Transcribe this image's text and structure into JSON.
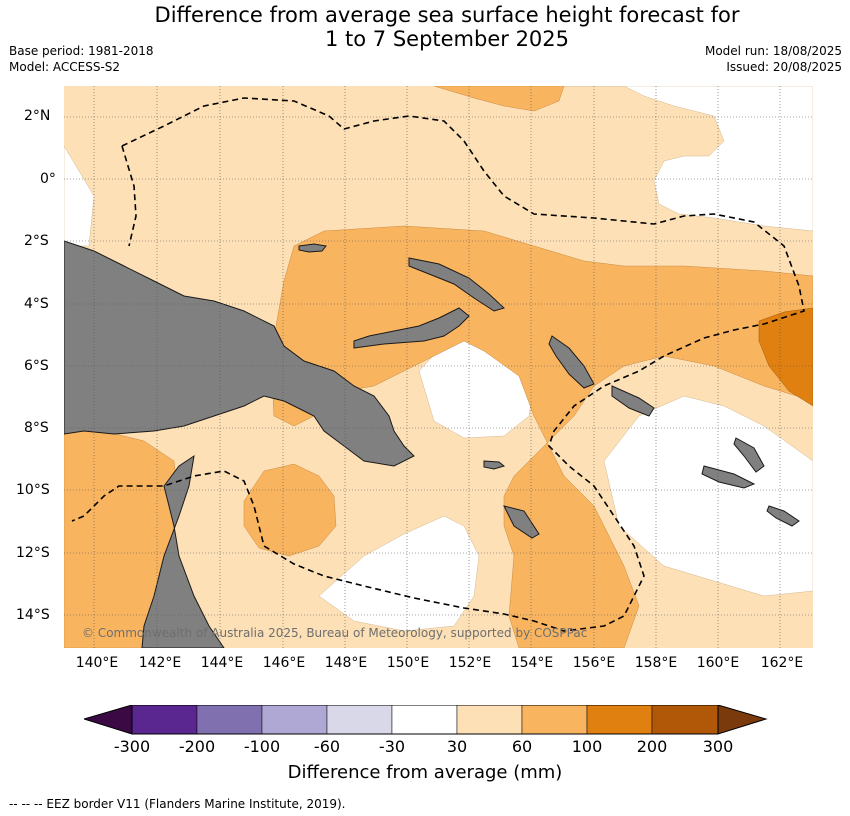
{
  "title_line1": "Difference from average sea surface height forecast for",
  "title_line2": "1 to 7 September 2025",
  "base_period": "Base period: 1981-2018",
  "model": "Model: ACCESS-S2",
  "model_run": "Model run: 18/08/2025",
  "issued": "Issued: 20/08/2025",
  "copyright": "© Commonwealth of Australia 2025, Bureau of Meteorology, supported by COSPPac",
  "lat_labels": [
    "2°N",
    "0°",
    "2°S",
    "4°S",
    "6°S",
    "8°S",
    "10°S",
    "12°S",
    "14°S"
  ],
  "lon_labels": [
    "140°E",
    "142°E",
    "144°E",
    "146°E",
    "148°E",
    "150°E",
    "152°E",
    "154°E",
    "156°E",
    "158°E",
    "160°E",
    "162°E"
  ],
  "colorbar": {
    "title": "Difference from average (mm)",
    "ticks": [
      "-300",
      "-200",
      "-100",
      "-60",
      "-30",
      "30",
      "60",
      "100",
      "200",
      "300"
    ],
    "colors": [
      "#3b0a45",
      "#5a2690",
      "#8070b0",
      "#b0a8d4",
      "#d8d8e8",
      "#ffffff",
      "#fde0b6",
      "#f9b460",
      "#e08010",
      "#b05808",
      "#7a3a0c"
    ]
  },
  "legend_footer": "-- -- -- EEZ border V11 (Flanders Marine Institute, 2019).",
  "colors": {
    "land": "#808080",
    "white_band": "#ffffff",
    "light_orange": "#fde0b6",
    "mid_orange": "#f9b460",
    "dark_orange": "#e08010"
  }
}
